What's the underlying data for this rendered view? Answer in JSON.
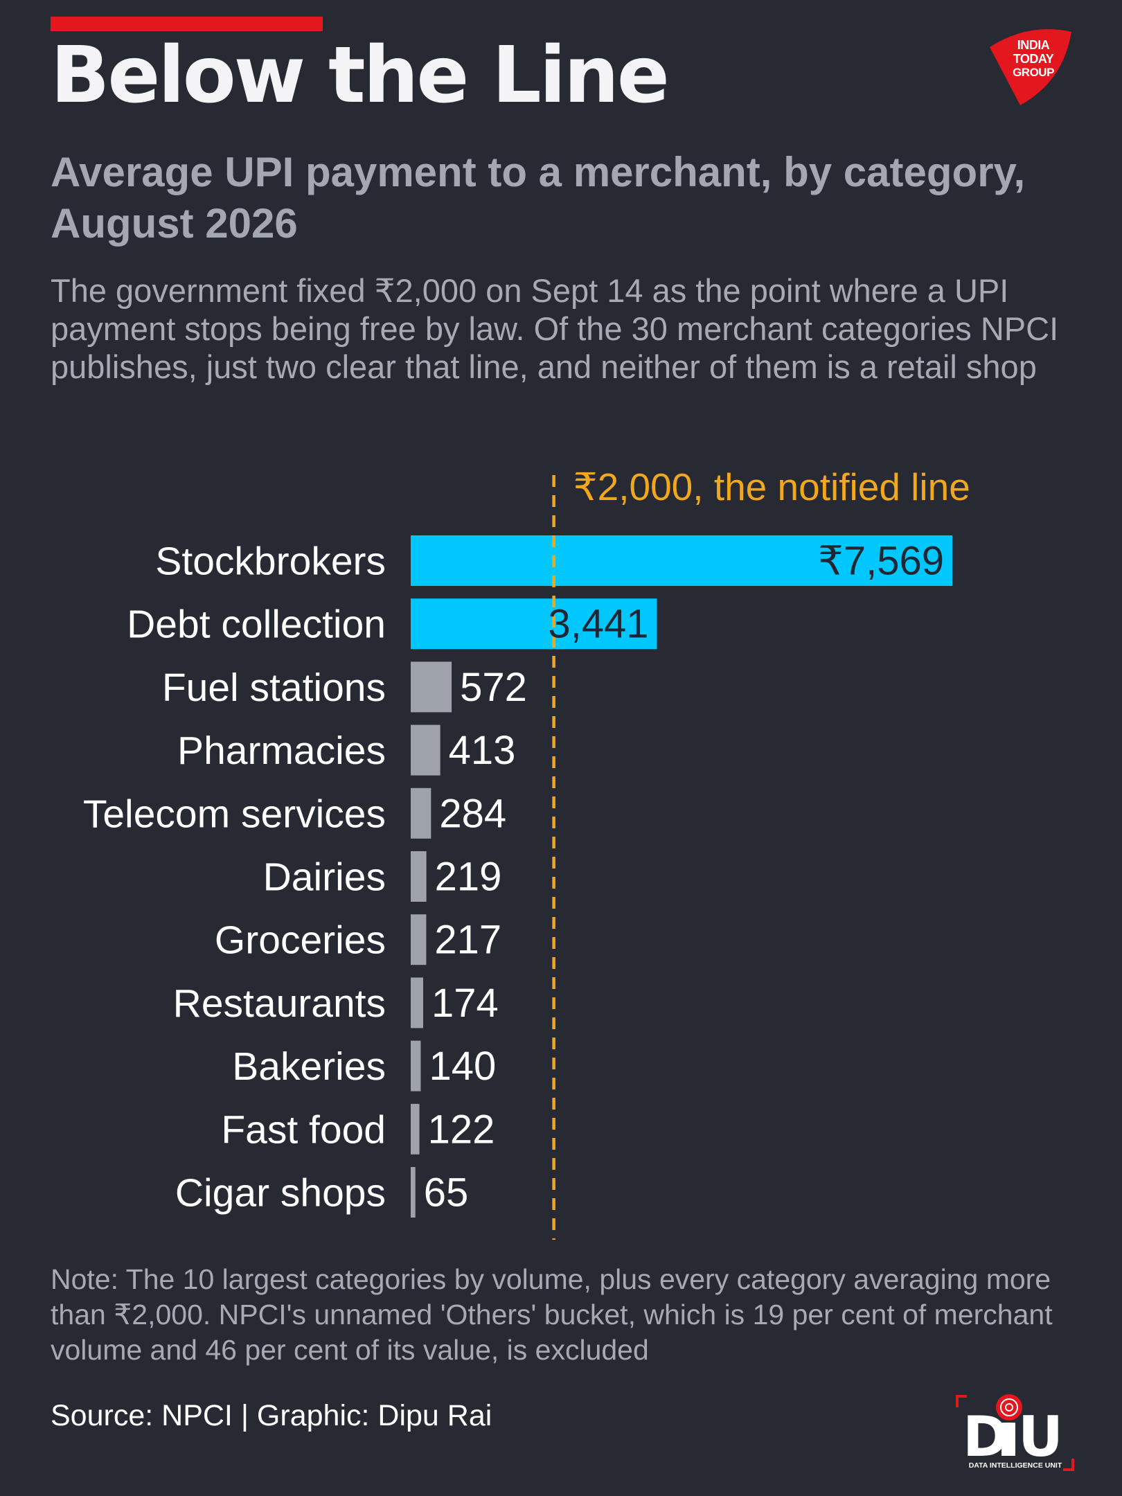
{
  "header": {
    "title": "Below the Line",
    "subtitle": "Average UPI payment to a merchant, by category, August 2026",
    "dek": "The government fixed ₹2,000 on Sept 14 as the point where a UPI payment stops being free by law. Of the 30 merchant categories NPCI publishes, just two clear that line, and neither of them is a retail shop"
  },
  "logos": {
    "publisher": "INDIA TODAY GROUP",
    "unit": "DIU",
    "unit_full": "DATA INTELLIGENCE UNIT"
  },
  "chart_data": {
    "type": "bar",
    "orientation": "horizontal",
    "categories": [
      "Stockbrokers",
      "Debt collection",
      "Fuel stations",
      "Pharmacies",
      "Telecom services",
      "Dairies",
      "Groceries",
      "Restaurants",
      "Bakeries",
      "Fast food",
      "Cigar shops"
    ],
    "values": [
      7569,
      3441,
      572,
      413,
      284,
      219,
      217,
      174,
      140,
      122,
      65
    ],
    "value_labels": [
      "₹7,569",
      "3,441",
      "572",
      "413",
      "284",
      "219",
      "217",
      "174",
      "140",
      "122",
      "65"
    ],
    "threshold": {
      "value": 2000,
      "label": "₹2,000, the notified line"
    },
    "xlim": [
      0,
      7569
    ],
    "colors": {
      "above_line": "#00c8ff",
      "below_line": "#9ea2ab",
      "threshold": "#f2a81d"
    }
  },
  "footer": {
    "note": "Note: The 10 largest categories by volume, plus every category averaging more than ₹2,000. NPCI's unnamed 'Others' bucket, which is 19 per cent of merchant volume and 46 per cent of its value, is excluded",
    "source": "Source: NPCI | Graphic: Dipu Rai"
  }
}
